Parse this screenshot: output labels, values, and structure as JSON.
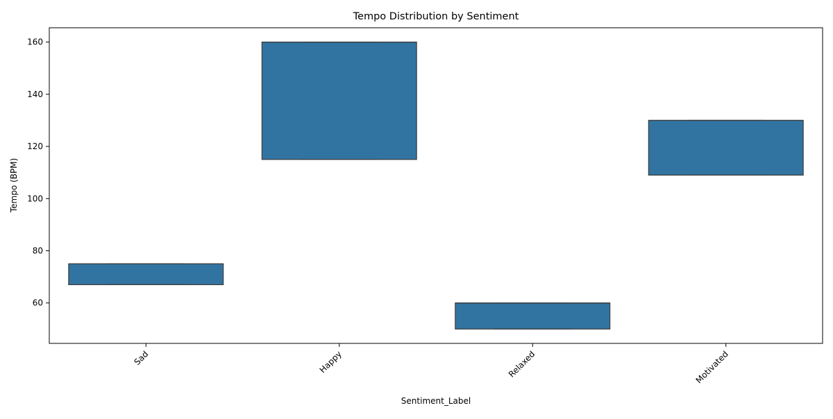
{
  "chart_data": {
    "type": "box",
    "title": "Tempo Distribution by Sentiment",
    "xlabel": "Sentiment_Label",
    "ylabel": "Tempo (BPM)",
    "categories": [
      "Sad",
      "Happy",
      "Relaxed",
      "Motivated"
    ],
    "boxes": [
      {
        "category": "Sad",
        "q1": 67,
        "median": 75,
        "q3": 75,
        "whisker_low": 67,
        "whisker_high": 75
      },
      {
        "category": "Happy",
        "q1": 115,
        "median": 160,
        "q3": 160,
        "whisker_low": 115,
        "whisker_high": 160
      },
      {
        "category": "Relaxed",
        "q1": 50,
        "median": 60,
        "q3": 60,
        "whisker_low": 50,
        "whisker_high": 60
      },
      {
        "category": "Motivated",
        "q1": 109,
        "median": 130,
        "q3": 130,
        "whisker_low": 109,
        "whisker_high": 130
      }
    ],
    "ylim": [
      44.5,
      165.5
    ],
    "yticks": [
      60,
      80,
      100,
      120,
      140,
      160
    ],
    "grid": false,
    "legend": "none",
    "box_color": "#3274a1",
    "edge_color": "#3d3d3d"
  }
}
